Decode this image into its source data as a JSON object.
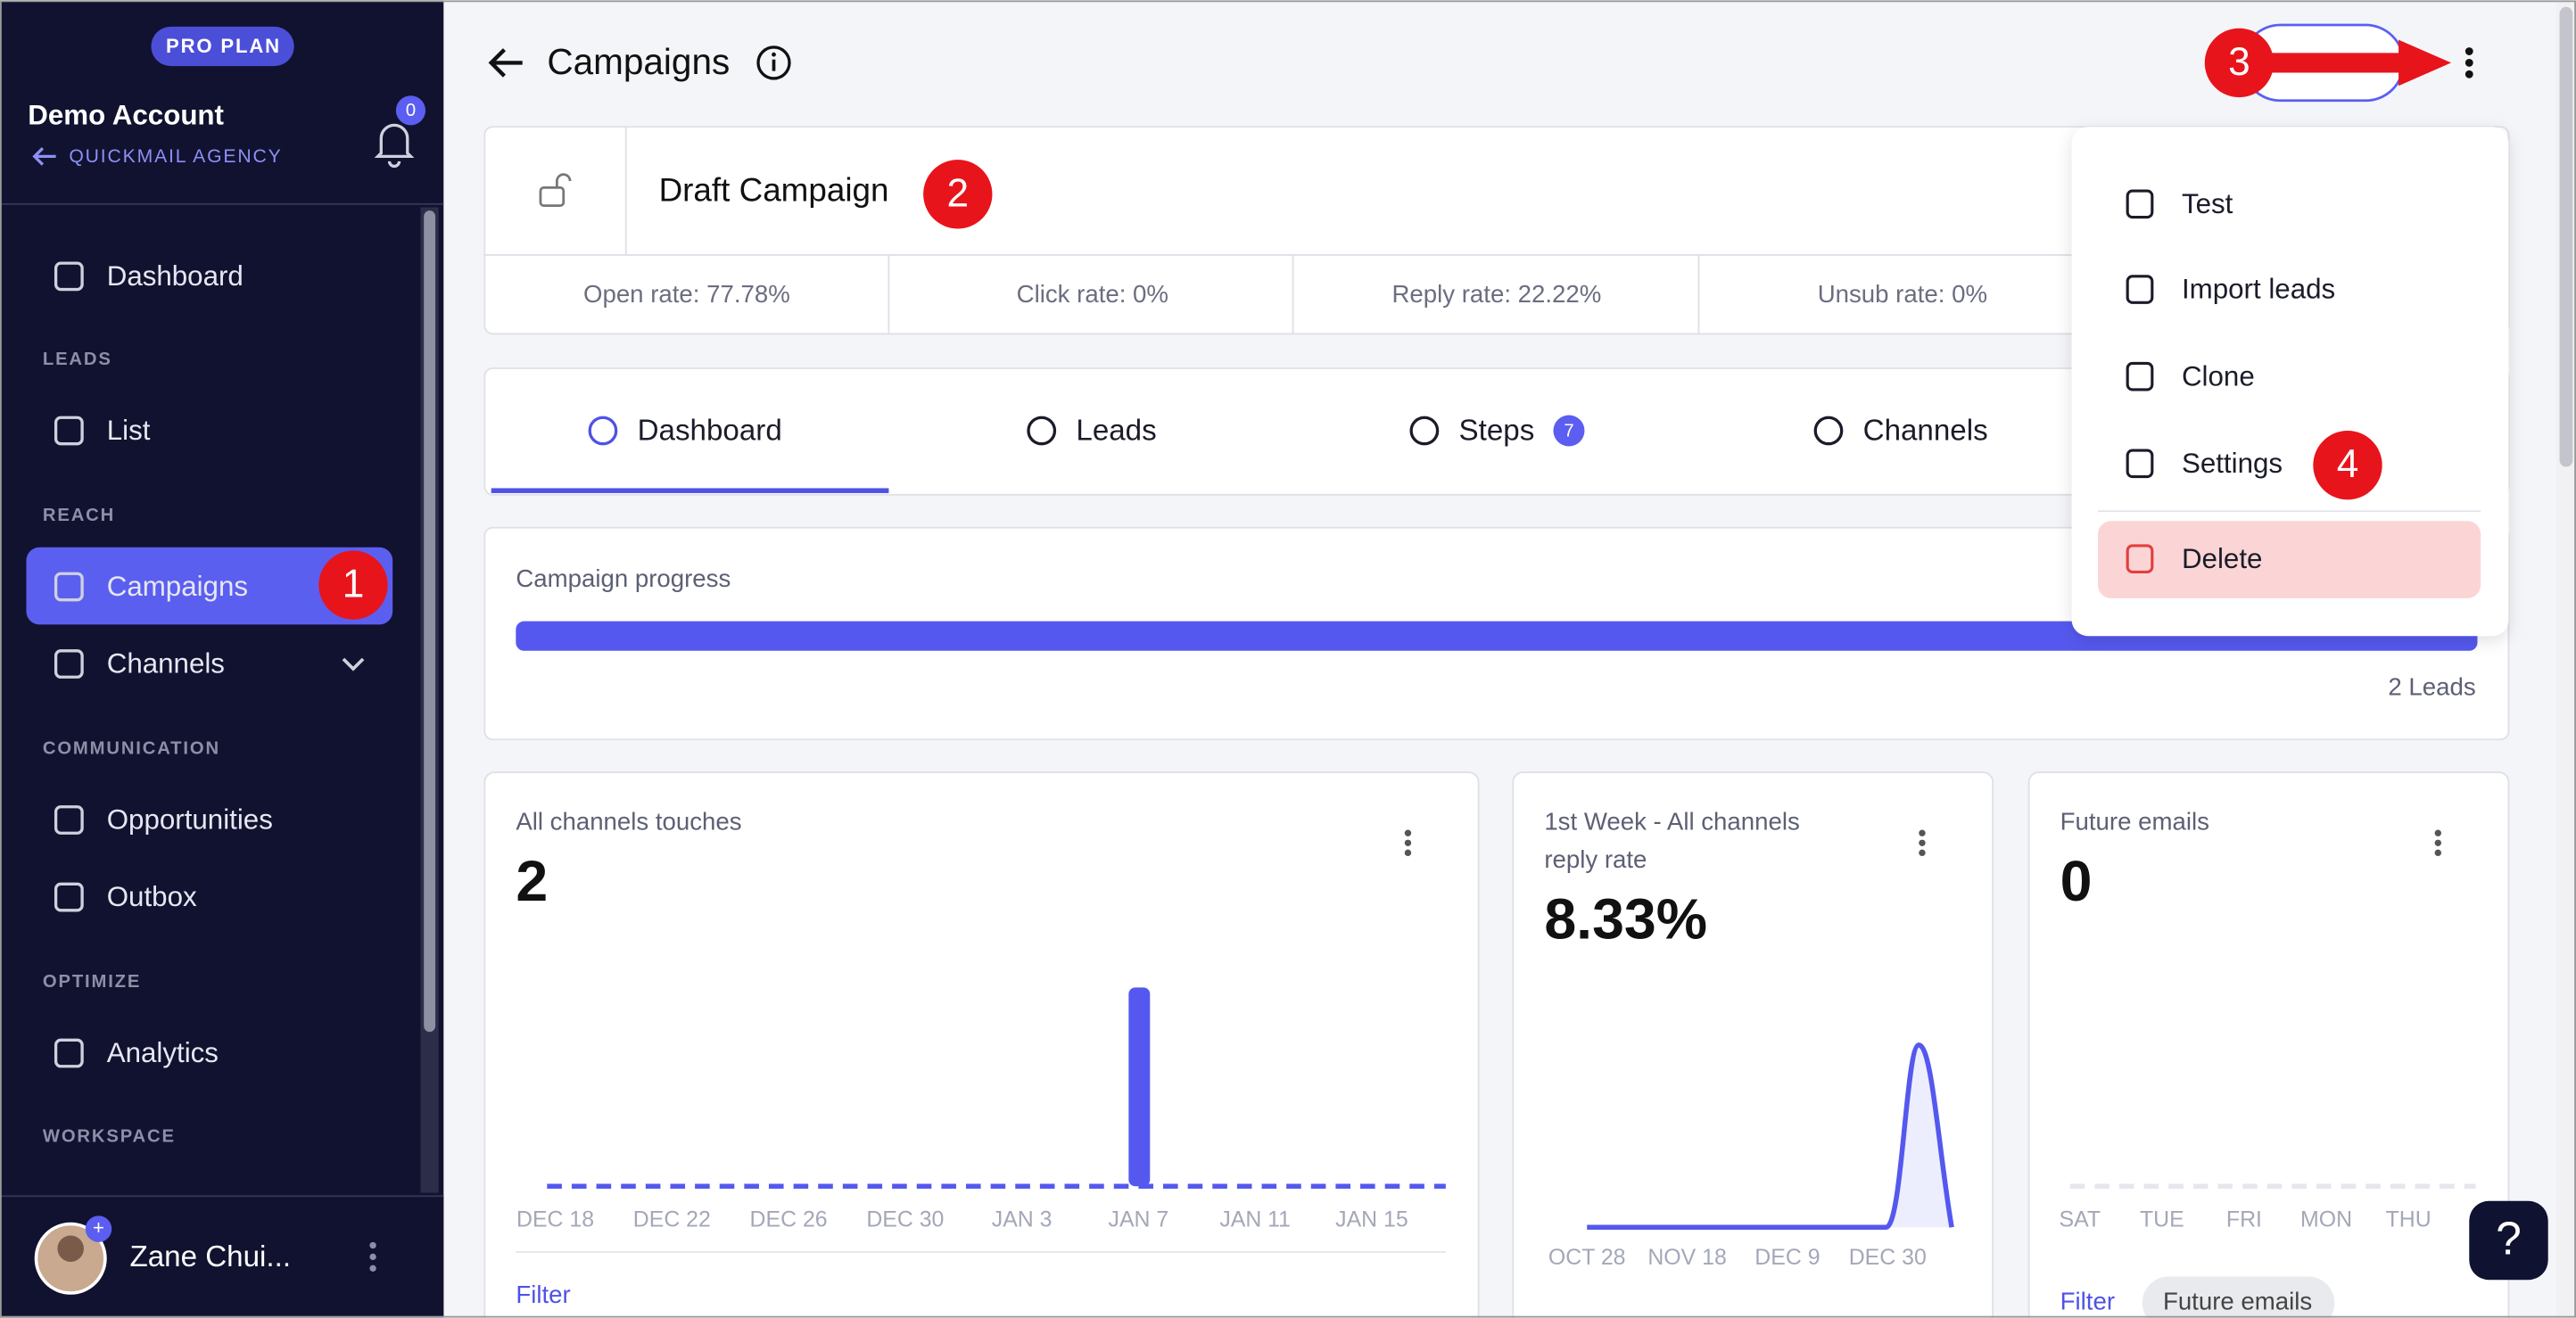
{
  "sidebar": {
    "plan": "PRO PLAN",
    "account": "Demo Account",
    "agency": "QUICKMAIL AGENCY",
    "notifications": "0",
    "nav": [
      {
        "kind": "item",
        "label": "Dashboard"
      },
      {
        "kind": "section",
        "label": "LEADS"
      },
      {
        "kind": "item",
        "label": "List"
      },
      {
        "kind": "section",
        "label": "REACH"
      },
      {
        "kind": "item",
        "label": "Campaigns"
      },
      {
        "kind": "item",
        "label": "Channels"
      },
      {
        "kind": "section",
        "label": "COMMUNICATION"
      },
      {
        "kind": "item",
        "label": "Opportunities"
      },
      {
        "kind": "item",
        "label": "Outbox"
      },
      {
        "kind": "section",
        "label": "OPTIMIZE"
      },
      {
        "kind": "item",
        "label": "Analytics"
      },
      {
        "kind": "section",
        "label": "WORKSPACE"
      }
    ],
    "user": {
      "name": "Zane Chui...",
      "badge": "+"
    }
  },
  "header": {
    "title": "Campaigns"
  },
  "campaign": {
    "name": "Draft Campaign",
    "stats": [
      "Open rate: 77.78%",
      "Click rate: 0%",
      "Reply rate: 22.22%",
      "Unsub rate: 0%"
    ]
  },
  "tabs": [
    {
      "label": "Dashboard"
    },
    {
      "label": "Leads"
    },
    {
      "label": "Steps",
      "badge": "7"
    },
    {
      "label": "Channels"
    }
  ],
  "progress": {
    "title": "Campaign progress",
    "leads": "2 Leads"
  },
  "cards": [
    {
      "title": "All channels touches",
      "value": "2",
      "x_labels": [
        "DEC 18",
        "DEC 22",
        "DEC 26",
        "DEC 30",
        "JAN 3",
        "JAN 7",
        "JAN 11",
        "JAN 15"
      ],
      "filter": "Filter"
    },
    {
      "title": [
        "1st Week - All channels",
        "reply rate"
      ],
      "value": "8.33%",
      "x_labels": [
        "OCT 28",
        "NOV 18",
        "DEC 9",
        "DEC 30"
      ]
    },
    {
      "title": "Future emails",
      "value": "0",
      "x_labels": [
        "SAT",
        "TUE",
        "FRI",
        "MON",
        "THU"
      ],
      "filter": "Filter",
      "chip": "Future emails"
    }
  ],
  "menu": [
    "Test",
    "Import leads",
    "Clone",
    "Settings",
    "Delete"
  ],
  "annotations": [
    "1",
    "2",
    "3",
    "4"
  ],
  "help": "?"
}
